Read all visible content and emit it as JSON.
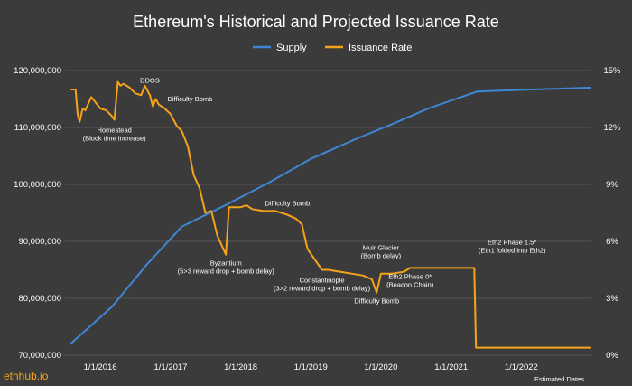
{
  "chart_data": {
    "type": "line",
    "title": "Ethereum's Historical and Projected Issuance Rate",
    "legend": {
      "position": "top-center"
    },
    "series": [
      {
        "name": "Supply",
        "axis": "left",
        "color": "#3f86d4",
        "points": [
          [
            "2015-07-30",
            72000000
          ],
          [
            "2016-03-01",
            78500000
          ],
          [
            "2016-09-01",
            86000000
          ],
          [
            "2017-03-01",
            92600000
          ],
          [
            "2017-10-16",
            96400000
          ],
          [
            "2018-06-01",
            100400000
          ],
          [
            "2019-01-01",
            104500000
          ],
          [
            "2019-09-01",
            108100000
          ],
          [
            "2020-03-01",
            110600000
          ],
          [
            "2020-09-01",
            113300000
          ],
          [
            "2021-05-15",
            116300000
          ],
          [
            "2022-01-01",
            116600000
          ],
          [
            "2023-01-01",
            117000000
          ]
        ]
      },
      {
        "name": "Issuance Rate",
        "axis": "right",
        "color": "#f7a21b",
        "points": [
          [
            "2015-07-30",
            14.0
          ],
          [
            "2015-08-25",
            14.0
          ],
          [
            "2015-09-05",
            12.7
          ],
          [
            "2015-09-15",
            12.3
          ],
          [
            "2015-10-01",
            13.0
          ],
          [
            "2015-10-15",
            12.9
          ],
          [
            "2015-11-01",
            13.3
          ],
          [
            "2015-11-15",
            13.6
          ],
          [
            "2015-12-01",
            13.4
          ],
          [
            "2016-01-01",
            13.0
          ],
          [
            "2016-02-01",
            12.9
          ],
          [
            "2016-03-01",
            12.6
          ],
          [
            "2016-03-14",
            12.4
          ],
          [
            "2016-04-01",
            14.4
          ],
          [
            "2016-04-15",
            14.2
          ],
          [
            "2016-05-01",
            14.3
          ],
          [
            "2016-06-01",
            14.1
          ],
          [
            "2016-07-01",
            13.8
          ],
          [
            "2016-08-01",
            13.7
          ],
          [
            "2016-08-20",
            14.2
          ],
          [
            "2016-09-15",
            13.7
          ],
          [
            "2016-10-01",
            13.1
          ],
          [
            "2016-10-15",
            13.5
          ],
          [
            "2016-11-01",
            13.2
          ],
          [
            "2016-12-01",
            13.0
          ],
          [
            "2017-01-01",
            12.7
          ],
          [
            "2017-02-01",
            12.1
          ],
          [
            "2017-03-01",
            11.8
          ],
          [
            "2017-04-01",
            11.0
          ],
          [
            "2017-05-01",
            9.5
          ],
          [
            "2017-06-01",
            8.8
          ],
          [
            "2017-07-01",
            7.5
          ],
          [
            "2017-08-01",
            7.6
          ],
          [
            "2017-09-01",
            6.3
          ],
          [
            "2017-10-16",
            5.3
          ],
          [
            "2017-11-01",
            7.8
          ],
          [
            "2018-01-01",
            7.8
          ],
          [
            "2018-02-01",
            7.9
          ],
          [
            "2018-03-01",
            7.7
          ],
          [
            "2018-05-01",
            7.6
          ],
          [
            "2018-07-01",
            7.6
          ],
          [
            "2018-09-01",
            7.4
          ],
          [
            "2018-10-15",
            7.2
          ],
          [
            "2018-11-15",
            6.9
          ],
          [
            "2018-12-15",
            5.6
          ],
          [
            "2019-02-28",
            4.5
          ],
          [
            "2019-04-01",
            4.5
          ],
          [
            "2019-06-01",
            4.4
          ],
          [
            "2019-08-01",
            4.3
          ],
          [
            "2019-10-01",
            4.2
          ],
          [
            "2019-11-15",
            4.0
          ],
          [
            "2019-12-10",
            3.3
          ],
          [
            "2020-01-01",
            4.3
          ],
          [
            "2020-03-01",
            4.3
          ],
          [
            "2020-05-01",
            4.4
          ],
          [
            "2020-06-01",
            4.6
          ],
          [
            "2020-12-01",
            4.6
          ],
          [
            "2021-05-01",
            4.6
          ],
          [
            "2021-05-10",
            0.4
          ],
          [
            "2022-01-01",
            0.4
          ],
          [
            "2022-12-31",
            0.4
          ]
        ]
      }
    ],
    "xaxis": {
      "type": "date",
      "range": [
        "2015-07-01",
        "2023-01-01"
      ],
      "ticks": [
        "2016-01-01",
        "2017-01-01",
        "2018-01-01",
        "2019-01-01",
        "2020-01-01",
        "2021-01-01",
        "2022-01-01"
      ],
      "tick_labels": [
        "1/1/2016",
        "1/1/2017",
        "1/1/2018",
        "1/1/2019",
        "1/1/2020",
        "1/1/2021",
        "1/1/2022"
      ]
    },
    "yaxis_left": {
      "range": [
        70000000,
        120000000
      ],
      "ticks": [
        70000000,
        80000000,
        90000000,
        100000000,
        110000000,
        120000000
      ],
      "tick_labels": [
        "70,000,000",
        "80,000,000",
        "90,000,000",
        "100,000,000",
        "110,000,000",
        "120,000,000"
      ]
    },
    "yaxis_right": {
      "range": [
        0,
        15
      ],
      "ticks": [
        0,
        3,
        6,
        9,
        12,
        15
      ],
      "tick_labels": [
        "0%",
        "3%",
        "6%",
        "9%",
        "12%",
        "15%"
      ]
    },
    "grid": "horizontal",
    "annotations": [
      {
        "lines": [
          "Homestead",
          "(Block time increase)"
        ],
        "date": "2016-03-14",
        "value": 12.4
      },
      {
        "lines": [
          "DDOS"
        ],
        "date": "2016-09-15",
        "value": 13.7
      },
      {
        "lines": [
          "Difficulty Bomb"
        ],
        "date": "2016-12-01",
        "value": 13.0
      },
      {
        "lines": [
          "Byzantium",
          "(5>3 reward drop + bomb delay)"
        ],
        "date": "2017-10-16",
        "value": 5.3
      },
      {
        "lines": [
          "Difficulty Bomb"
        ],
        "date": "2018-09-01",
        "value": 7.4
      },
      {
        "lines": [
          "Constantinople",
          "(3>2 reward drop + bomb delay)"
        ],
        "date": "2019-02-28",
        "value": 4.5
      },
      {
        "lines": [
          "Muir Glacier",
          "(Bomb delay)"
        ],
        "date": "2020-01-01",
        "value": 4.3
      },
      {
        "lines": [
          "Difficulty Bomb"
        ],
        "date": "2019-12-10",
        "value": 3.3
      },
      {
        "lines": [
          "Eth2 Phase 0*",
          "(Beacon Chain)"
        ],
        "date": "2020-06-01",
        "value": 4.6
      },
      {
        "lines": [
          "Eth2 Phase 1.5*",
          "(Eth1 folded into Eth2)"
        ],
        "date": "2021-05-10",
        "value": 4.6
      }
    ],
    "footnote": "Estimated Dates",
    "source": "ethhub.io"
  }
}
